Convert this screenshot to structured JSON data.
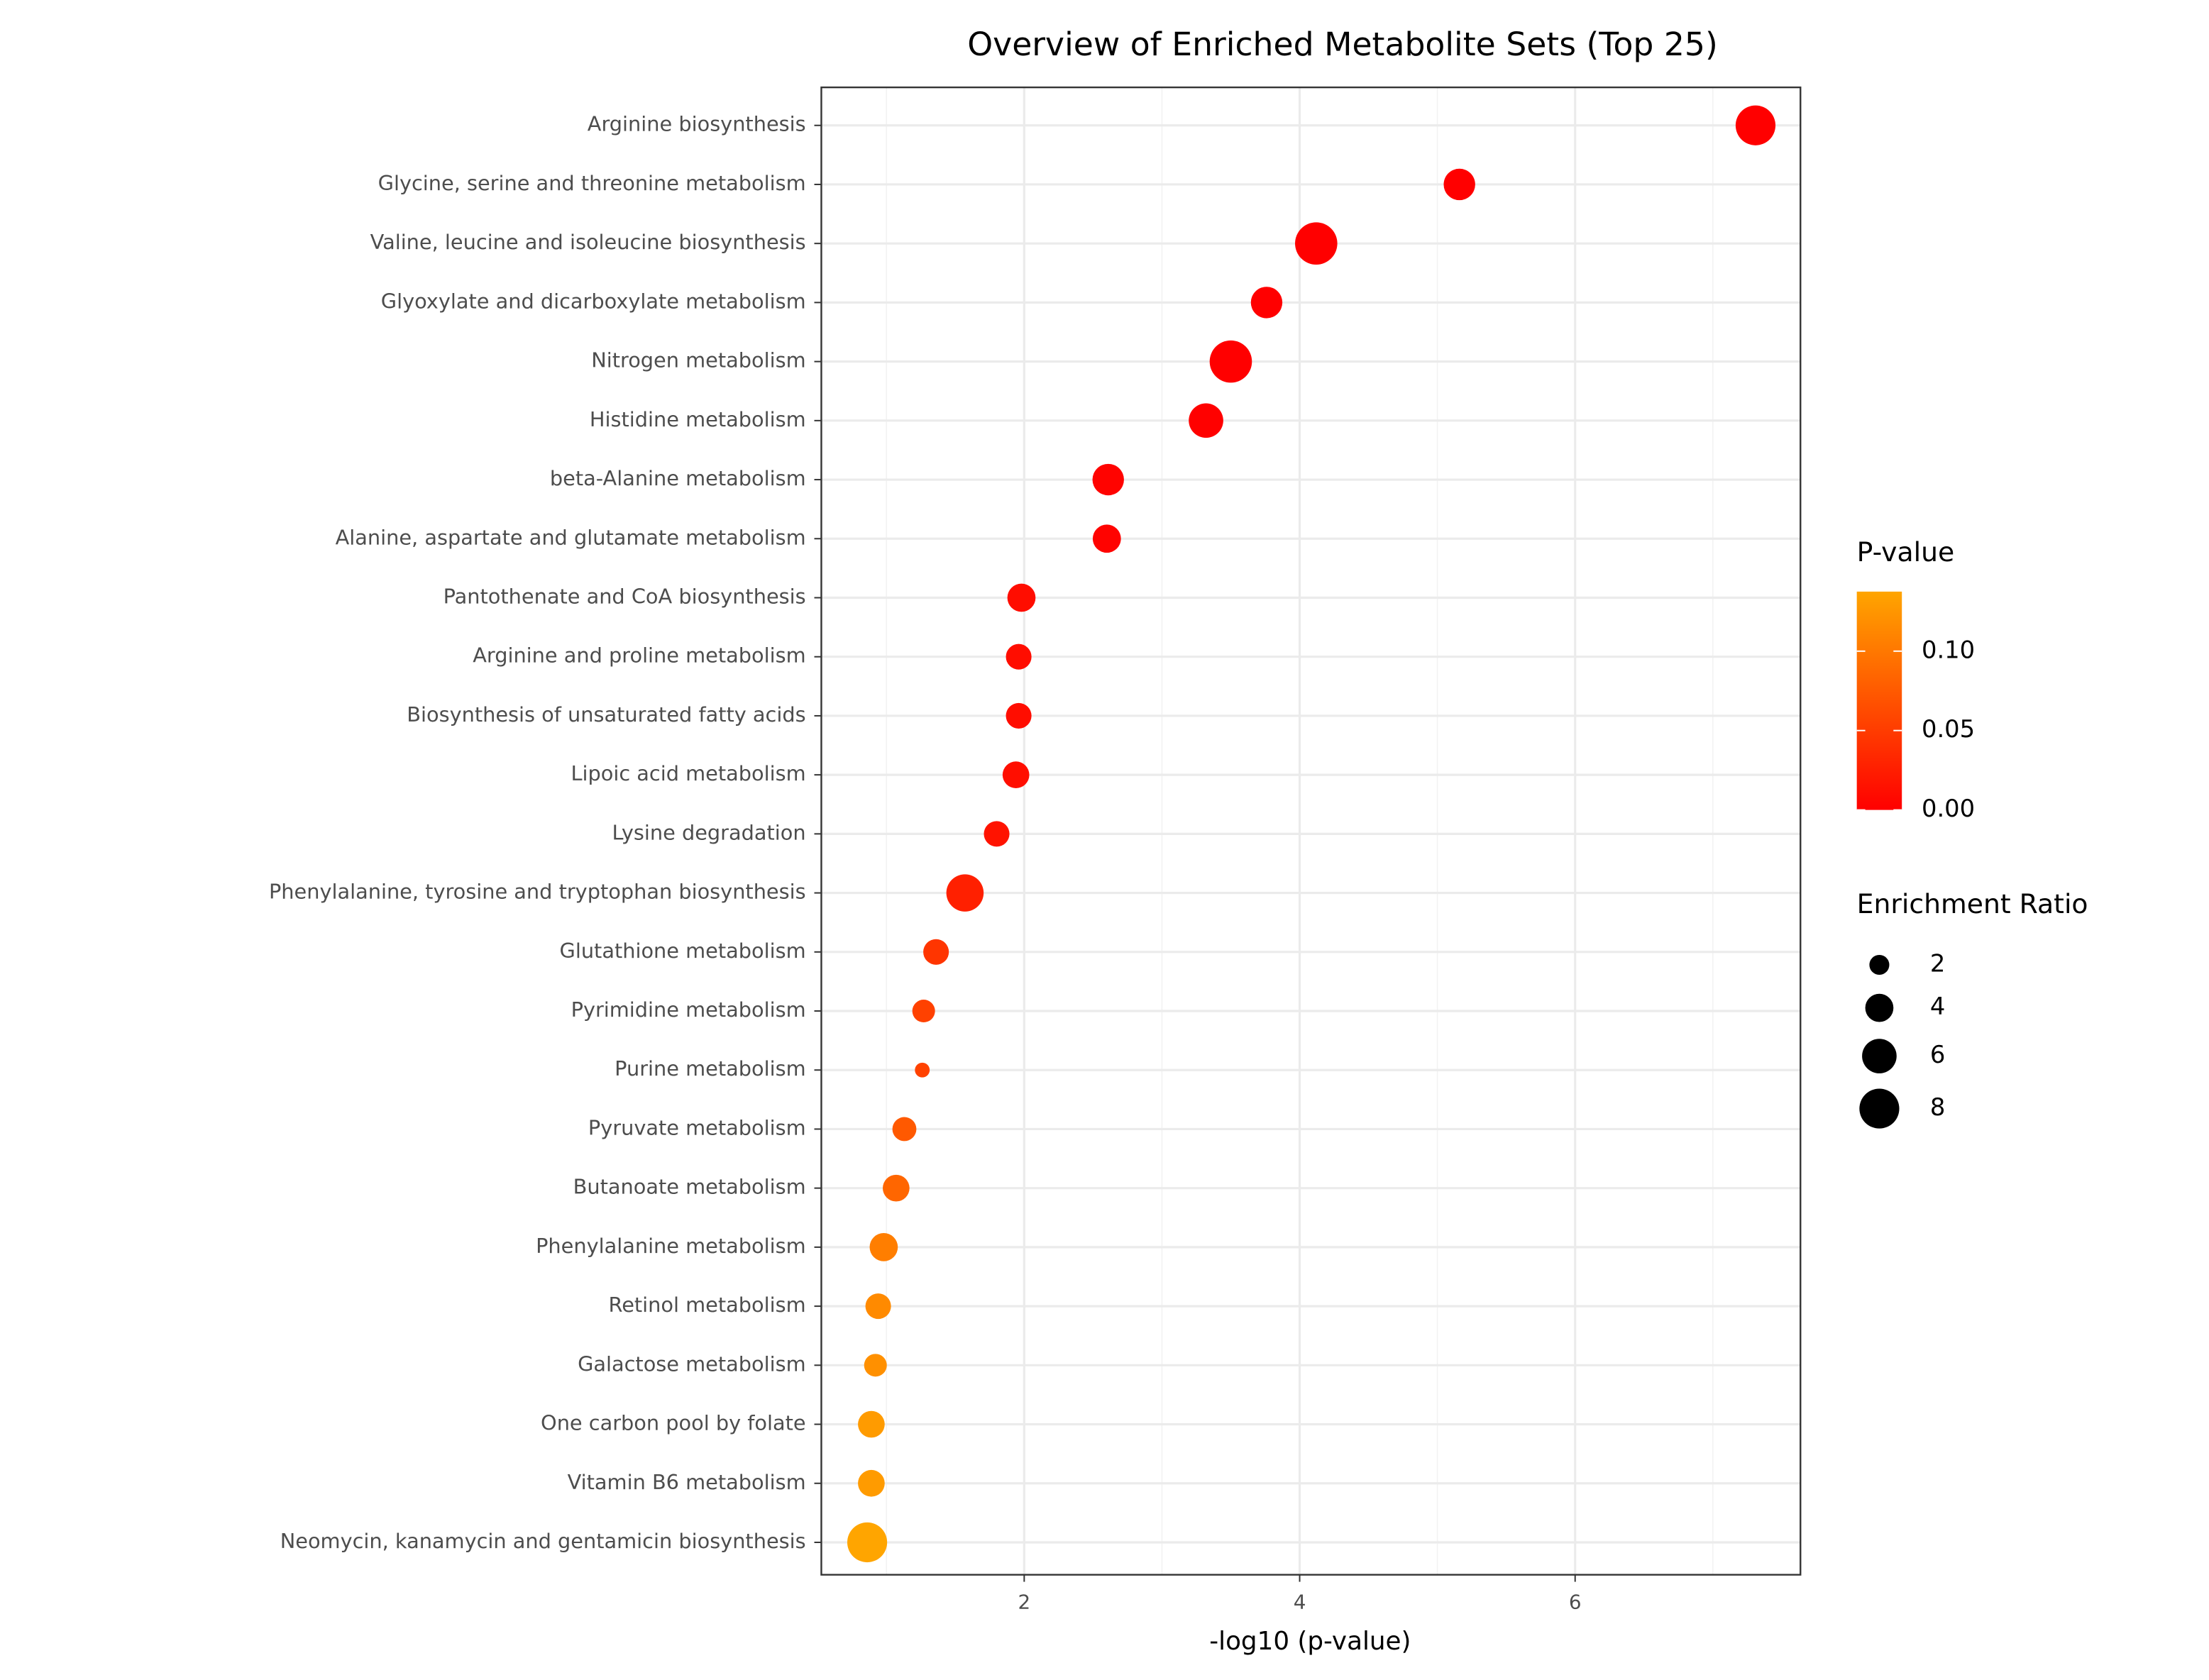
{
  "chart_data": {
    "type": "scatter",
    "title": "Overview of Enriched Metabolite Sets (Top 25)",
    "x_label": "-log10 (p-value)",
    "categories": [
      "Arginine biosynthesis",
      "Glycine, serine and threonine metabolism",
      "Valine, leucine and isoleucine biosynthesis",
      "Glyoxylate and dicarboxylate metabolism",
      "Nitrogen metabolism",
      "Histidine metabolism",
      "beta-Alanine metabolism",
      "Alanine, aspartate and glutamate metabolism",
      "Pantothenate and CoA biosynthesis",
      "Arginine and proline metabolism",
      "Biosynthesis of unsaturated fatty acids",
      "Lipoic acid metabolism",
      "Lysine degradation",
      "Phenylalanine, tyrosine and tryptophan biosynthesis",
      "Glutathione metabolism",
      "Pyrimidine metabolism",
      "Purine metabolism",
      "Pyruvate metabolism",
      "Butanoate metabolism",
      "Phenylalanine metabolism",
      "Retinol metabolism",
      "Galactose metabolism",
      "One carbon pool by folate",
      "Vitamin B6 metabolism",
      "Neomycin, kanamycin and gentamicin biosynthesis"
    ],
    "values": [
      7.31,
      5.16,
      4.12,
      3.76,
      3.5,
      3.32,
      2.61,
      2.6,
      1.98,
      1.96,
      1.96,
      1.94,
      1.8,
      1.57,
      1.36,
      1.27,
      1.26,
      1.13,
      1.07,
      0.98,
      0.94,
      0.92,
      0.89,
      0.89,
      0.86
    ],
    "pvalues": [
      5e-08,
      6.9e-06,
      7.6e-05,
      0.00017,
      0.00032,
      0.00048,
      0.0025,
      0.0025,
      0.0105,
      0.011,
      0.011,
      0.0115,
      0.016,
      0.027,
      0.044,
      0.054,
      0.055,
      0.074,
      0.085,
      0.105,
      0.115,
      0.12,
      0.129,
      0.129,
      0.138
    ],
    "enrichment_ratio": [
      8,
      5,
      9,
      5,
      9,
      6,
      5,
      4,
      4,
      3.3,
      3.3,
      3.6,
      3.3,
      7,
      3.3,
      2.6,
      1.1,
      2.9,
      3.6,
      4,
      3.3,
      2.6,
      3.6,
      3.6,
      8
    ],
    "xlim": [
      0.527,
      7.636
    ],
    "xticks": [
      2,
      4,
      6
    ],
    "x_minor_ticks": [
      1,
      3,
      5,
      7
    ],
    "grid": true,
    "color_legend": {
      "title": "P-value",
      "low_color": "#ff0000",
      "high_color": "#ffa500",
      "clim": [
        0,
        0.1375
      ],
      "ticks": [
        {
          "value": 0,
          "label": "0.00"
        },
        {
          "value": 0.05,
          "label": "0.05"
        },
        {
          "value": 0.1,
          "label": "0.10"
        }
      ]
    },
    "size_legend": {
      "title": "Enrichment Ratio",
      "values": [
        2,
        4,
        6,
        8
      ]
    }
  }
}
